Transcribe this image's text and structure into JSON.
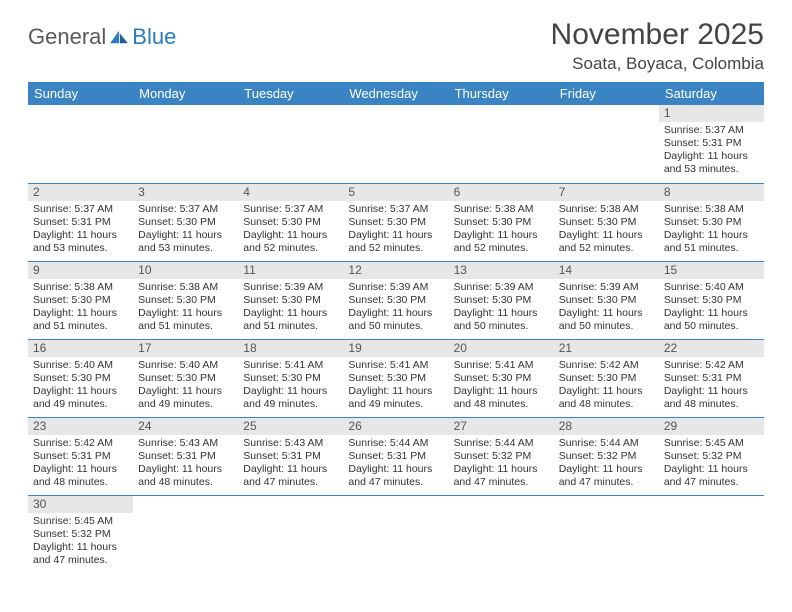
{
  "logo": {
    "text1": "General",
    "text2": "Blue"
  },
  "title": "November 2025",
  "location": "Soata, Boyaca, Colombia",
  "header_bg": "#3a84c4",
  "daynum_bg": "#e7e7e7",
  "days": [
    "Sunday",
    "Monday",
    "Tuesday",
    "Wednesday",
    "Thursday",
    "Friday",
    "Saturday"
  ],
  "weeks": [
    [
      null,
      null,
      null,
      null,
      null,
      null,
      {
        "n": "1",
        "rise": "5:37 AM",
        "set": "5:31 PM",
        "dl": "11 hours and 53 minutes."
      }
    ],
    [
      {
        "n": "2",
        "rise": "5:37 AM",
        "set": "5:31 PM",
        "dl": "11 hours and 53 minutes."
      },
      {
        "n": "3",
        "rise": "5:37 AM",
        "set": "5:30 PM",
        "dl": "11 hours and 53 minutes."
      },
      {
        "n": "4",
        "rise": "5:37 AM",
        "set": "5:30 PM",
        "dl": "11 hours and 52 minutes."
      },
      {
        "n": "5",
        "rise": "5:37 AM",
        "set": "5:30 PM",
        "dl": "11 hours and 52 minutes."
      },
      {
        "n": "6",
        "rise": "5:38 AM",
        "set": "5:30 PM",
        "dl": "11 hours and 52 minutes."
      },
      {
        "n": "7",
        "rise": "5:38 AM",
        "set": "5:30 PM",
        "dl": "11 hours and 52 minutes."
      },
      {
        "n": "8",
        "rise": "5:38 AM",
        "set": "5:30 PM",
        "dl": "11 hours and 51 minutes."
      }
    ],
    [
      {
        "n": "9",
        "rise": "5:38 AM",
        "set": "5:30 PM",
        "dl": "11 hours and 51 minutes."
      },
      {
        "n": "10",
        "rise": "5:38 AM",
        "set": "5:30 PM",
        "dl": "11 hours and 51 minutes."
      },
      {
        "n": "11",
        "rise": "5:39 AM",
        "set": "5:30 PM",
        "dl": "11 hours and 51 minutes."
      },
      {
        "n": "12",
        "rise": "5:39 AM",
        "set": "5:30 PM",
        "dl": "11 hours and 50 minutes."
      },
      {
        "n": "13",
        "rise": "5:39 AM",
        "set": "5:30 PM",
        "dl": "11 hours and 50 minutes."
      },
      {
        "n": "14",
        "rise": "5:39 AM",
        "set": "5:30 PM",
        "dl": "11 hours and 50 minutes."
      },
      {
        "n": "15",
        "rise": "5:40 AM",
        "set": "5:30 PM",
        "dl": "11 hours and 50 minutes."
      }
    ],
    [
      {
        "n": "16",
        "rise": "5:40 AM",
        "set": "5:30 PM",
        "dl": "11 hours and 49 minutes."
      },
      {
        "n": "17",
        "rise": "5:40 AM",
        "set": "5:30 PM",
        "dl": "11 hours and 49 minutes."
      },
      {
        "n": "18",
        "rise": "5:41 AM",
        "set": "5:30 PM",
        "dl": "11 hours and 49 minutes."
      },
      {
        "n": "19",
        "rise": "5:41 AM",
        "set": "5:30 PM",
        "dl": "11 hours and 49 minutes."
      },
      {
        "n": "20",
        "rise": "5:41 AM",
        "set": "5:30 PM",
        "dl": "11 hours and 48 minutes."
      },
      {
        "n": "21",
        "rise": "5:42 AM",
        "set": "5:30 PM",
        "dl": "11 hours and 48 minutes."
      },
      {
        "n": "22",
        "rise": "5:42 AM",
        "set": "5:31 PM",
        "dl": "11 hours and 48 minutes."
      }
    ],
    [
      {
        "n": "23",
        "rise": "5:42 AM",
        "set": "5:31 PM",
        "dl": "11 hours and 48 minutes."
      },
      {
        "n": "24",
        "rise": "5:43 AM",
        "set": "5:31 PM",
        "dl": "11 hours and 48 minutes."
      },
      {
        "n": "25",
        "rise": "5:43 AM",
        "set": "5:31 PM",
        "dl": "11 hours and 47 minutes."
      },
      {
        "n": "26",
        "rise": "5:44 AM",
        "set": "5:31 PM",
        "dl": "11 hours and 47 minutes."
      },
      {
        "n": "27",
        "rise": "5:44 AM",
        "set": "5:32 PM",
        "dl": "11 hours and 47 minutes."
      },
      {
        "n": "28",
        "rise": "5:44 AM",
        "set": "5:32 PM",
        "dl": "11 hours and 47 minutes."
      },
      {
        "n": "29",
        "rise": "5:45 AM",
        "set": "5:32 PM",
        "dl": "11 hours and 47 minutes."
      }
    ],
    [
      {
        "n": "30",
        "rise": "5:45 AM",
        "set": "5:32 PM",
        "dl": "11 hours and 47 minutes."
      },
      null,
      null,
      null,
      null,
      null,
      null
    ]
  ],
  "labels": {
    "sunrise": "Sunrise: ",
    "sunset": "Sunset: ",
    "daylight": "Daylight: "
  }
}
